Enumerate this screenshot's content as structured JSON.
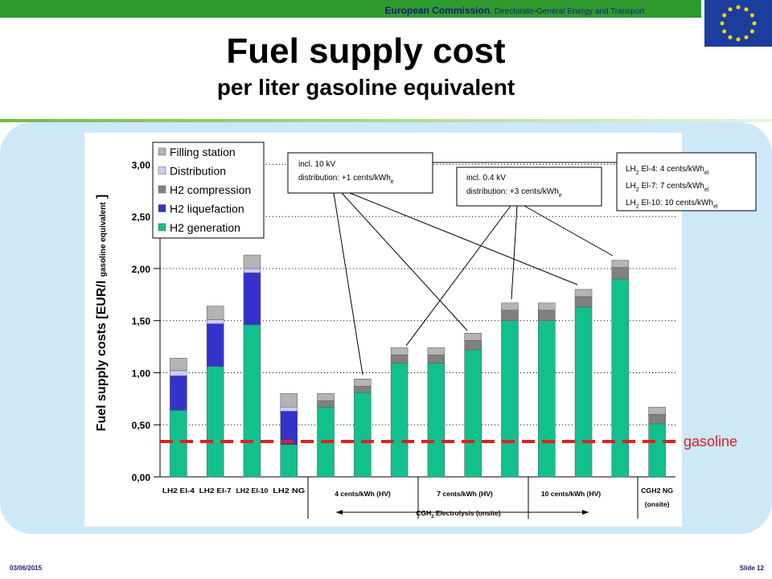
{
  "header": {
    "org": "European Commission",
    "dept": ", Directorate-General Energy and Transport"
  },
  "footer": {
    "date": "03/06/2015",
    "slide": "Slide 12"
  },
  "chart_data": {
    "type": "stacked_bar",
    "title": "Fuel supply cost",
    "subtitle": "per liter gasoline equivalent",
    "y_label": [
      "Fuel supply costs [EUR/l ",
      "gasoline equivalent",
      " ]"
    ],
    "categories": [
      "LH2 El-4",
      "LH2 El-7",
      "LH2 El-10",
      "LH2 NG",
      null,
      null,
      null,
      null,
      null,
      null,
      null,
      null,
      null,
      "CGH2 NG"
    ],
    "category_note": "(onsite)",
    "group_labels": [
      "4 cents/kWh (HV)",
      "7 cents/kWh (HV)",
      "10 cents/kWh (HV)"
    ],
    "group_caption": [
      "CGH",
      "2",
      " Electrolysis (onsite)"
    ],
    "series": [
      {
        "name": "Filling station",
        "color": "#b4b4b4",
        "values": [
          0.12,
          0.13,
          0.13,
          0.13,
          0.07,
          0.07,
          0.07,
          0.07,
          0.07,
          0.07,
          0.07,
          0.07,
          0.07,
          0.07
        ]
      },
      {
        "name": "Distribution",
        "color": "#ccccff",
        "values": [
          0.05,
          0.04,
          0.04,
          0.04,
          0,
          0,
          0,
          0,
          0,
          0,
          0,
          0,
          0,
          0
        ]
      },
      {
        "name": "H2 compression",
        "color": "#808080",
        "values": [
          0,
          0,
          0,
          0,
          0.06,
          0.06,
          0.08,
          0.08,
          0.09,
          0.1,
          0.1,
          0.1,
          0.11,
          0.09
        ]
      },
      {
        "name": "H2 liquefaction",
        "color": "#3333cc",
        "values": [
          0.33,
          0.41,
          0.5,
          0.32,
          0,
          0,
          0,
          0,
          0,
          0,
          0,
          0,
          0,
          0
        ]
      },
      {
        "name": "H2 generation",
        "color": "#12c08e",
        "values": [
          0.64,
          1.06,
          1.46,
          0.31,
          0.67,
          0.81,
          1.09,
          1.09,
          1.22,
          1.5,
          1.5,
          1.63,
          1.9,
          0.51
        ]
      }
    ],
    "ylim": [
      0,
      3.15
    ],
    "yticks": [
      {
        "value": 0,
        "label": "0,00"
      },
      {
        "value": 0.5,
        "label": "0,50"
      },
      {
        "value": 1,
        "label": "1,00"
      },
      {
        "value": 1.5,
        "label": "1,50"
      },
      {
        "value": 2,
        "label": "2,00"
      },
      {
        "value": 2.5,
        "label": "2,50"
      },
      {
        "value": 3,
        "label": "3,00"
      }
    ],
    "grid": true,
    "legend": "top-left",
    "reference_line": {
      "value": 0.34,
      "label": "gasoline",
      "color": "#e02020"
    },
    "annotations": [
      [
        [
          "incl. 10 kV"
        ],
        [
          "distribution: +1 cents/kWh",
          "e"
        ]
      ],
      [
        [
          "incl. 0.4 kV"
        ],
        [
          "distribution: +3 cents/kWh",
          "e"
        ]
      ],
      [
        [
          "LH",
          "2",
          " El-4: 4 cents/kWh",
          "el"
        ],
        [
          "LH",
          "2",
          " El-7: 7 cents/kWh",
          "el"
        ],
        [
          "LH",
          "2",
          " El-10: 10 cents/kWh",
          "el"
        ]
      ]
    ]
  }
}
